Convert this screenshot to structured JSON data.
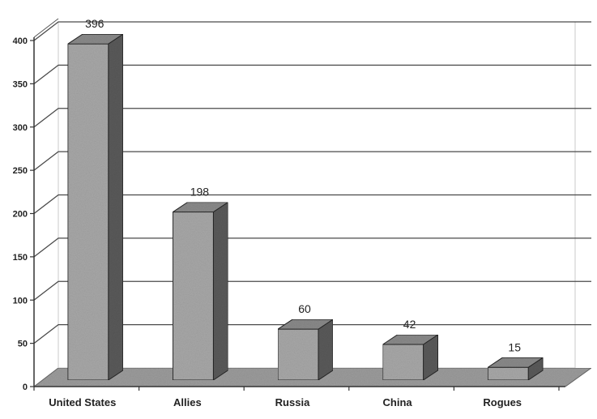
{
  "chart_data": {
    "type": "bar",
    "categories": [
      "United States",
      "Allies",
      "Russia",
      "China",
      "Rogues"
    ],
    "values": [
      396,
      198,
      60,
      42,
      15
    ],
    "value_labels": [
      "396",
      "198",
      "60",
      "42",
      "15"
    ],
    "title": "",
    "xlabel": "",
    "ylabel": "",
    "ylim": [
      0,
      400
    ],
    "yticks": [
      0,
      50,
      100,
      150,
      200,
      250,
      300,
      350,
      400
    ],
    "ytick_labels": [
      "0",
      "50",
      "100",
      "150",
      "200",
      "250",
      "300",
      "350",
      "400"
    ],
    "grid": true,
    "legend": "none",
    "style": "3d",
    "colors": {
      "bar_front": "#a8a8a8",
      "bar_top": "#8a8a8a",
      "bar_side": "#5a5a5a",
      "floor": "#9c9c9c",
      "gridline": "#4a4a4a"
    }
  }
}
